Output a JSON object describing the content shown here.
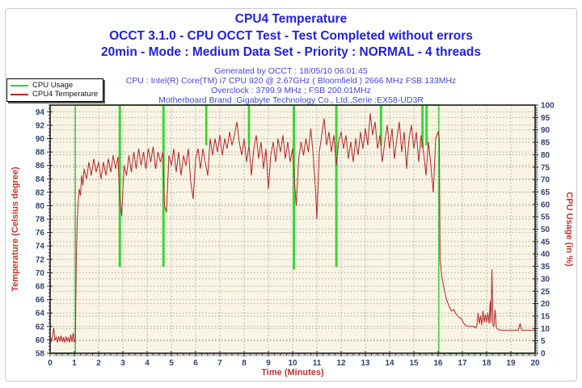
{
  "header": {
    "title": "CPU4 Temperature",
    "line2": "OCCT 3.1.0 - CPU OCCT Test - Test Completed without errors",
    "line3": "20min - Mode : Medium Data Set - Priority : NORMAL - 4 threads"
  },
  "info_lines": [
    "Generated by OCCT : 18/05/10 06:01:45",
    "CPU : Intel(R) Core(TM) i7 CPU 920 @ 2.67GHz ( Bloomfield ) 2666 MHz FSB 133MHz",
    "Overclock : 3799.9 MHz ; FSB 200.01MHz",
    "Motherboard Brand :Gigabyte Technology Co., Ltd.,Serie :EX58-UD3R"
  ],
  "legend": {
    "items": [
      {
        "label": "CPU Usage",
        "color": "#2ed32e"
      },
      {
        "label": "CPU4 Temperature",
        "color": "#b22626"
      }
    ]
  },
  "chart_data": {
    "type": "line",
    "title": "CPU4 Temperature",
    "plot_bg": "#f9f4e3",
    "frame_color": "#1a1a1a",
    "grid": {
      "color": "#ababab",
      "dash": "1.5,2.5"
    },
    "tick_label_color": "#2e4470",
    "axis_title_color": "#c03535",
    "x_axis": {
      "label": "Time (Minutes)",
      "min": 0,
      "max": 20,
      "minor_step": 0.25,
      "ticks": [
        0,
        1,
        2,
        3,
        4,
        5,
        6,
        7,
        8,
        9,
        10,
        11,
        12,
        13,
        14,
        15,
        16,
        17,
        18,
        19,
        20
      ]
    },
    "left_axis": {
      "label": "Temperature (Celsius degree)",
      "min": 58,
      "max": 95,
      "minor_step": 0.5,
      "ticks": [
        58,
        60,
        62,
        64,
        66,
        68,
        70,
        72,
        74,
        76,
        78,
        80,
        82,
        84,
        86,
        88,
        90,
        92,
        94
      ]
    },
    "right_axis": {
      "label": "CPU Usage (in %)",
      "min": 0,
      "max": 100,
      "minor_step": 1,
      "ticks": [
        0,
        5,
        10,
        15,
        20,
        25,
        30,
        35,
        40,
        45,
        50,
        55,
        60,
        65,
        70,
        75,
        80,
        85,
        90,
        95,
        100
      ]
    },
    "series": [
      {
        "name": "CPU Usage",
        "axis": "right",
        "color": "#2ed32e",
        "width": 1.4,
        "points": [
          [
            0,
            0
          ],
          [
            1.04,
            0
          ],
          [
            1.04,
            100
          ],
          [
            2.85,
            100
          ],
          [
            2.85,
            35
          ],
          [
            2.9,
            35
          ],
          [
            2.9,
            100
          ],
          [
            4.65,
            100
          ],
          [
            4.65,
            35
          ],
          [
            4.7,
            35
          ],
          [
            4.7,
            100
          ],
          [
            6.42,
            100
          ],
          [
            6.42,
            84
          ],
          [
            6.46,
            84
          ],
          [
            6.46,
            100
          ],
          [
            8.18,
            100
          ],
          [
            8.18,
            84
          ],
          [
            8.22,
            84
          ],
          [
            8.22,
            100
          ],
          [
            10.03,
            100
          ],
          [
            10.03,
            34
          ],
          [
            10.08,
            34
          ],
          [
            10.08,
            100
          ],
          [
            11.78,
            100
          ],
          [
            11.78,
            35
          ],
          [
            11.83,
            35
          ],
          [
            11.83,
            100
          ],
          [
            13.62,
            100
          ],
          [
            13.62,
            84
          ],
          [
            13.67,
            84
          ],
          [
            13.67,
            100
          ],
          [
            15.33,
            100
          ],
          [
            15.33,
            83
          ],
          [
            15.38,
            83
          ],
          [
            15.38,
            100
          ],
          [
            15.5,
            100
          ],
          [
            15.5,
            84
          ],
          [
            15.55,
            84
          ],
          [
            15.55,
            100
          ],
          [
            16.03,
            100
          ],
          [
            16.03,
            0
          ],
          [
            20,
            0
          ]
        ]
      },
      {
        "name": "CPU4 Temperature",
        "axis": "left",
        "color": "#b22626",
        "width": 1,
        "points": [
          [
            0,
            60.3
          ],
          [
            0.05,
            59.7
          ],
          [
            0.1,
            60.6
          ],
          [
            0.15,
            61.8
          ],
          [
            0.2,
            59.9
          ],
          [
            0.25,
            60.4
          ],
          [
            0.3,
            59.6
          ],
          [
            0.35,
            60.5
          ],
          [
            0.4,
            59.8
          ],
          [
            0.45,
            60.6
          ],
          [
            0.5,
            59.7
          ],
          [
            0.55,
            60.4
          ],
          [
            0.6,
            59.6
          ],
          [
            0.65,
            60.5
          ],
          [
            0.7,
            59.8
          ],
          [
            0.75,
            60.3
          ],
          [
            0.8,
            59.6
          ],
          [
            0.85,
            60.8
          ],
          [
            0.9,
            59.7
          ],
          [
            0.95,
            61.0
          ],
          [
            1.0,
            59.6
          ],
          [
            1.04,
            60.0
          ],
          [
            1.08,
            72.0
          ],
          [
            1.12,
            78.0
          ],
          [
            1.16,
            80.5
          ],
          [
            1.2,
            82.5
          ],
          [
            1.25,
            81.5
          ],
          [
            1.3,
            84.5
          ],
          [
            1.35,
            83.0
          ],
          [
            1.4,
            85.5
          ],
          [
            1.5,
            84.0
          ],
          [
            1.6,
            86.5
          ],
          [
            1.7,
            84.5
          ],
          [
            1.8,
            87.0
          ],
          [
            1.9,
            85.0
          ],
          [
            2.0,
            86.5
          ],
          [
            2.1,
            84.0
          ],
          [
            2.2,
            86.5
          ],
          [
            2.3,
            84.5
          ],
          [
            2.4,
            87.0
          ],
          [
            2.5,
            85.0
          ],
          [
            2.6,
            87.5
          ],
          [
            2.7,
            85.5
          ],
          [
            2.8,
            87.3
          ],
          [
            2.87,
            81.0
          ],
          [
            2.95,
            78.5
          ],
          [
            3.05,
            86.0
          ],
          [
            3.15,
            84.5
          ],
          [
            3.25,
            87.5
          ],
          [
            3.35,
            85.0
          ],
          [
            3.45,
            88.0
          ],
          [
            3.55,
            85.5
          ],
          [
            3.65,
            88.5
          ],
          [
            3.75,
            86.0
          ],
          [
            3.85,
            88.0
          ],
          [
            3.95,
            85.5
          ],
          [
            4.05,
            88.5
          ],
          [
            4.15,
            86.5
          ],
          [
            4.25,
            88.8
          ],
          [
            4.35,
            85.5
          ],
          [
            4.45,
            88.0
          ],
          [
            4.55,
            86.5
          ],
          [
            4.65,
            88.0
          ],
          [
            4.72,
            80.0
          ],
          [
            4.8,
            79.0
          ],
          [
            4.9,
            87.5
          ],
          [
            5.0,
            86.0
          ],
          [
            5.1,
            88.5
          ],
          [
            5.2,
            85.0
          ],
          [
            5.3,
            88.0
          ],
          [
            5.4,
            84.5
          ],
          [
            5.5,
            87.5
          ],
          [
            5.6,
            86.0
          ],
          [
            5.7,
            88.5
          ],
          [
            5.8,
            83.5
          ],
          [
            5.9,
            81.0
          ],
          [
            6.0,
            87.0
          ],
          [
            6.1,
            88.5
          ],
          [
            6.2,
            85.5
          ],
          [
            6.3,
            88.5
          ],
          [
            6.42,
            86.0
          ],
          [
            6.5,
            84.5
          ],
          [
            6.6,
            90.0
          ],
          [
            6.7,
            87.5
          ],
          [
            6.8,
            90.0
          ],
          [
            6.9,
            88.0
          ],
          [
            7.0,
            90.5
          ],
          [
            7.1,
            87.5
          ],
          [
            7.2,
            90.0
          ],
          [
            7.3,
            88.5
          ],
          [
            7.4,
            91.0
          ],
          [
            7.5,
            89.0
          ],
          [
            7.6,
            90.5
          ],
          [
            7.7,
            92.5
          ],
          [
            7.8,
            89.5
          ],
          [
            7.9,
            87.5
          ],
          [
            8.0,
            90.0
          ],
          [
            8.1,
            86.5
          ],
          [
            8.2,
            89.0
          ],
          [
            8.3,
            84.5
          ],
          [
            8.4,
            88.5
          ],
          [
            8.5,
            90.5
          ],
          [
            8.6,
            87.0
          ],
          [
            8.7,
            89.5
          ],
          [
            8.8,
            85.5
          ],
          [
            8.9,
            88.5
          ],
          [
            9.0,
            82.5
          ],
          [
            9.1,
            87.5
          ],
          [
            9.2,
            89.5
          ],
          [
            9.3,
            86.5
          ],
          [
            9.4,
            90.0
          ],
          [
            9.5,
            88.0
          ],
          [
            9.6,
            90.5
          ],
          [
            9.7,
            87.0
          ],
          [
            9.8,
            89.5
          ],
          [
            9.9,
            86.5
          ],
          [
            10.0,
            88.5
          ],
          [
            10.07,
            84.0
          ],
          [
            10.15,
            80.0
          ],
          [
            10.25,
            87.0
          ],
          [
            10.35,
            89.5
          ],
          [
            10.45,
            87.5
          ],
          [
            10.55,
            90.0
          ],
          [
            10.65,
            88.0
          ],
          [
            10.75,
            91.5
          ],
          [
            10.85,
            87.5
          ],
          [
            10.95,
            82.0
          ],
          [
            11.0,
            78.0
          ],
          [
            11.1,
            88.0
          ],
          [
            11.2,
            90.5
          ],
          [
            11.3,
            93.0
          ],
          [
            11.4,
            89.0
          ],
          [
            11.5,
            91.0
          ],
          [
            11.6,
            88.0
          ],
          [
            11.7,
            90.5
          ],
          [
            11.8,
            86.0
          ],
          [
            11.9,
            89.5
          ],
          [
            12.0,
            91.0
          ],
          [
            12.1,
            88.5
          ],
          [
            12.2,
            90.5
          ],
          [
            12.3,
            87.0
          ],
          [
            12.4,
            89.5
          ],
          [
            12.5,
            86.5
          ],
          [
            12.6,
            90.0
          ],
          [
            12.7,
            87.5
          ],
          [
            12.8,
            91.0
          ],
          [
            12.9,
            88.5
          ],
          [
            13.0,
            91.5
          ],
          [
            13.1,
            89.0
          ],
          [
            13.2,
            93.8
          ],
          [
            13.3,
            90.5
          ],
          [
            13.4,
            92.5
          ],
          [
            13.5,
            88.5
          ],
          [
            13.6,
            90.5
          ],
          [
            13.7,
            86.5
          ],
          [
            13.8,
            89.5
          ],
          [
            13.9,
            92.0
          ],
          [
            14.0,
            88.5
          ],
          [
            14.1,
            91.5
          ],
          [
            14.2,
            87.0
          ],
          [
            14.3,
            90.0
          ],
          [
            14.4,
            92.5
          ],
          [
            14.5,
            88.0
          ],
          [
            14.6,
            91.0
          ],
          [
            14.7,
            85.5
          ],
          [
            14.8,
            90.0
          ],
          [
            14.9,
            92.0
          ],
          [
            15.0,
            88.5
          ],
          [
            15.1,
            91.0
          ],
          [
            15.2,
            86.5
          ],
          [
            15.3,
            90.5
          ],
          [
            15.4,
            88.0
          ],
          [
            15.5,
            84.5
          ],
          [
            15.6,
            89.5
          ],
          [
            15.7,
            86.0
          ],
          [
            15.8,
            82.0
          ],
          [
            15.9,
            90.0
          ],
          [
            16.0,
            91.0
          ],
          [
            16.05,
            90.0
          ],
          [
            16.08,
            72.0
          ],
          [
            16.15,
            69.5
          ],
          [
            16.25,
            67.5
          ],
          [
            16.35,
            66.0
          ],
          [
            16.45,
            65.0
          ],
          [
            16.55,
            64.3
          ],
          [
            16.65,
            64.5
          ],
          [
            16.75,
            63.8
          ],
          [
            16.85,
            63.4
          ],
          [
            16.95,
            63.2
          ],
          [
            17.05,
            62.5
          ],
          [
            17.15,
            62.1
          ],
          [
            17.3,
            62.0
          ],
          [
            17.45,
            62.0
          ],
          [
            17.55,
            61.8
          ],
          [
            17.6,
            62.2
          ],
          [
            17.65,
            64.0
          ],
          [
            17.7,
            62.4
          ],
          [
            17.75,
            63.6
          ],
          [
            17.8,
            62.2
          ],
          [
            17.85,
            64.3
          ],
          [
            17.9,
            62.6
          ],
          [
            17.95,
            63.8
          ],
          [
            18.0,
            62.6
          ],
          [
            18.05,
            64.0
          ],
          [
            18.1,
            62.4
          ],
          [
            18.15,
            65.8
          ],
          [
            18.18,
            62.5
          ],
          [
            18.22,
            70.5
          ],
          [
            18.26,
            62.2
          ],
          [
            18.3,
            62.0
          ],
          [
            18.35,
            64.5
          ],
          [
            18.4,
            61.8
          ],
          [
            18.5,
            61.5
          ],
          [
            18.7,
            61.4
          ],
          [
            19.0,
            61.4
          ],
          [
            19.3,
            61.4
          ],
          [
            19.38,
            62.4
          ],
          [
            19.45,
            61.4
          ],
          [
            19.7,
            61.4
          ],
          [
            20.0,
            61.4
          ]
        ]
      }
    ]
  }
}
